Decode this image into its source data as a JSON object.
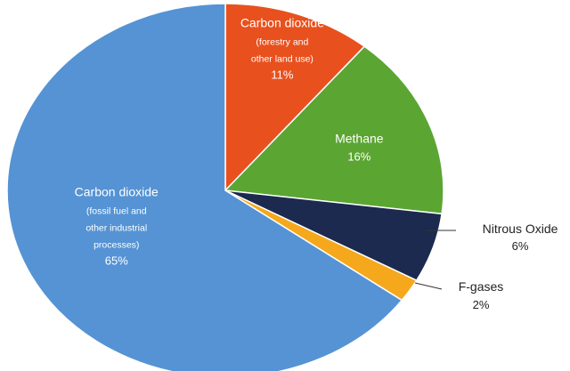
{
  "chart_data": {
    "type": "pie",
    "title": "",
    "unit": "%",
    "slices": [
      {
        "label": "Carbon dioxide",
        "sublabel": [
          "(forestry and",
          "other land use)"
        ],
        "value": 11,
        "value_label": "11%",
        "color": "#E8511E"
      },
      {
        "label": "Methane",
        "sublabel": [],
        "value": 16,
        "value_label": "16%",
        "color": "#5BA532"
      },
      {
        "label": "Nitrous Oxide",
        "sublabel": [],
        "value": 6,
        "value_label": "6%",
        "color": "#1B2A4E"
      },
      {
        "label": "F-gases",
        "sublabel": [],
        "value": 2,
        "value_label": "2%",
        "color": "#F5A81C"
      },
      {
        "label": "Carbon dioxide",
        "sublabel": [
          "(fossil fuel and",
          "other industrial",
          "processes)"
        ],
        "value": 65,
        "value_label": "65%",
        "color": "#5593D4"
      }
    ],
    "legend": "none",
    "start_angle_deg": 0,
    "direction": "clockwise"
  }
}
